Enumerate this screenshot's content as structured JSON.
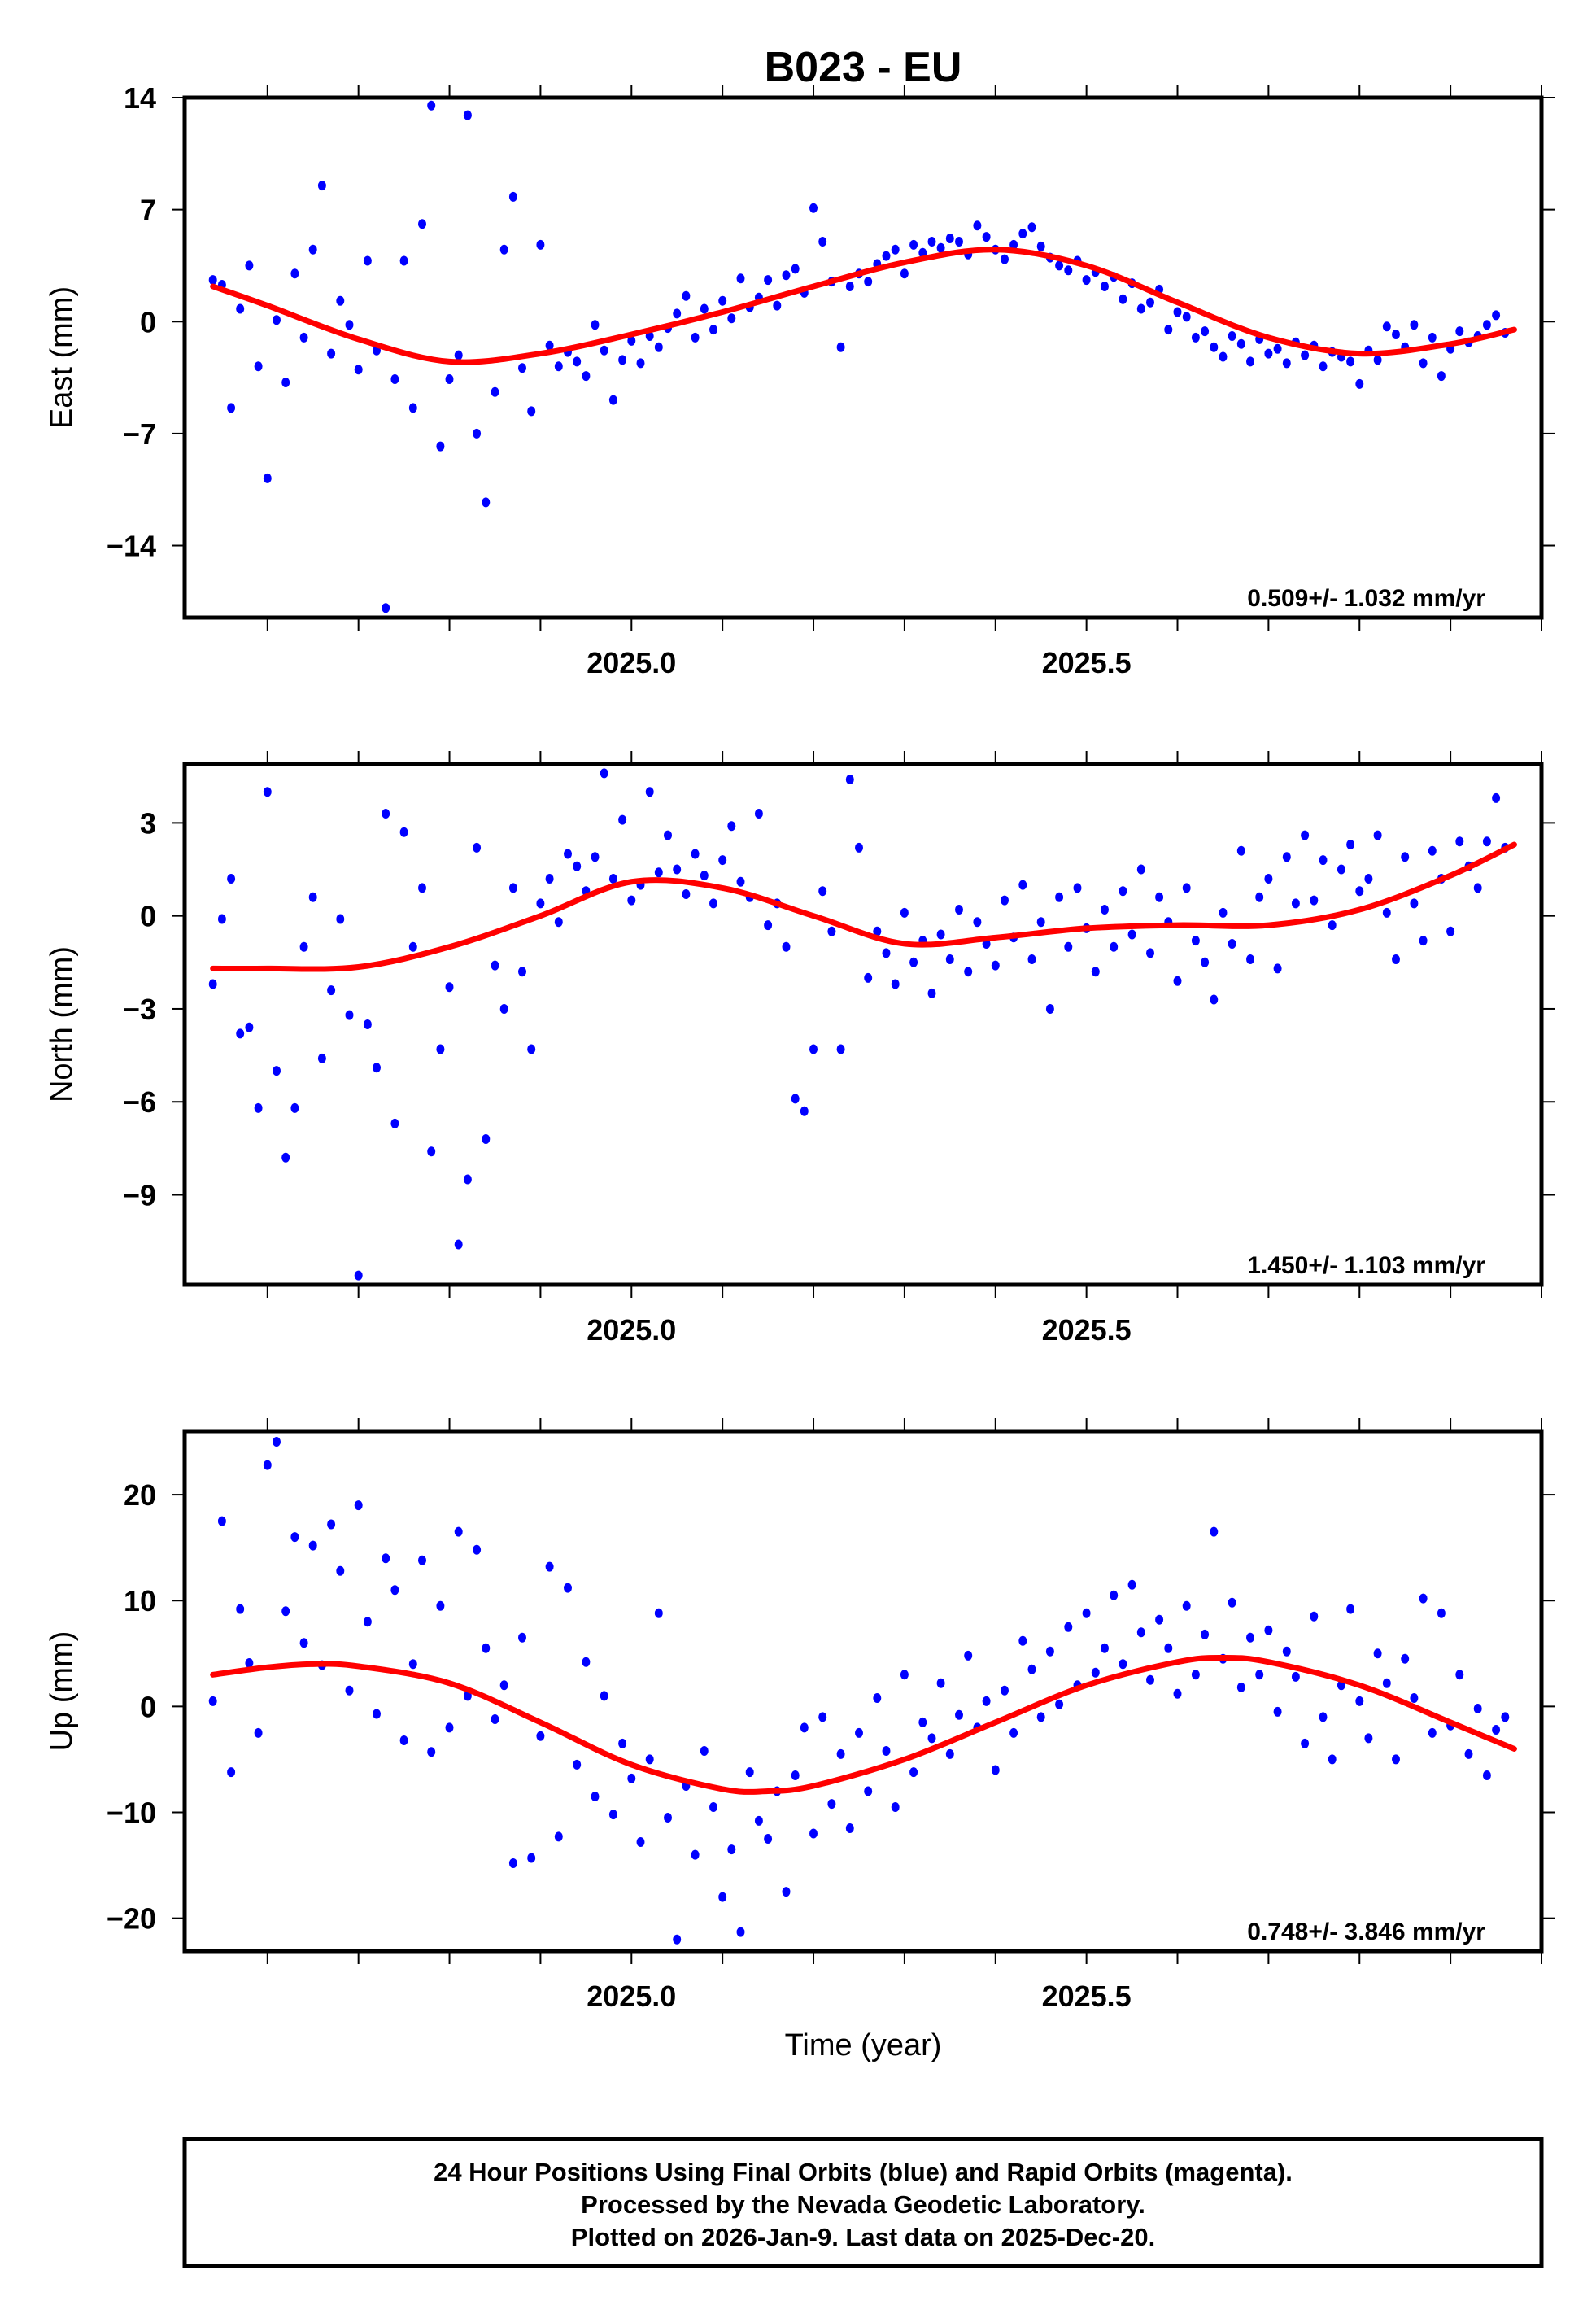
{
  "title": "B023 - EU",
  "footer": {
    "lines": [
      "24 Hour Positions Using Final Orbits (blue) and Rapid Orbits (magenta).",
      "Processed by the Nevada Geodetic Laboratory.",
      "Plotted on 2026-Jan-9. Last data on 2025-Dec-20."
    ]
  },
  "colors": {
    "final_orbits": "#0000ff",
    "fit": "#ff0000",
    "frame": "#000000"
  },
  "chart_data": [
    {
      "type": "scatter",
      "name": "east",
      "ylabel": "East (mm)",
      "xlabel": "",
      "xlim": [
        2024.509,
        2026.0
      ],
      "ylim": [
        -18.5,
        14
      ],
      "yticks": [
        14,
        7,
        0,
        -7,
        -14
      ],
      "ytick_labels": [
        "14",
        "7",
        "0",
        "−7",
        "−14"
      ],
      "xticks": [
        2025.0,
        2025.5
      ],
      "xtick_labels": [
        "2025.0",
        "2025.5"
      ],
      "rate_label": "0.509+/- 1.032 mm/yr",
      "x_start": 2024.54,
      "x_step": 0.01,
      "values": [
        2.6,
        2.3,
        -5.4,
        0.8,
        3.5,
        -2.8,
        -9.8,
        0.1,
        -3.8,
        3.0,
        -1.0,
        4.5,
        8.5,
        -2.0,
        1.3,
        -0.2,
        -3.0,
        3.8,
        -1.8,
        -17.9,
        -3.6,
        3.8,
        -5.4,
        6.1,
        13.5,
        -7.8,
        -3.6,
        -2.1,
        12.9,
        -7.0,
        -11.3,
        -4.4,
        4.5,
        7.8,
        -2.9,
        -5.6,
        4.8,
        -1.5,
        -2.8,
        -1.9,
        -2.5,
        -3.4,
        -0.2,
        -1.8,
        -4.9,
        -2.4,
        -1.2,
        -2.6,
        -0.9,
        -1.6,
        -0.4,
        0.5,
        1.6,
        -1.0,
        0.8,
        -0.5,
        1.3,
        0.2,
        2.7,
        0.9,
        1.5,
        2.6,
        1.0,
        2.9,
        3.3,
        1.8,
        7.1,
        5.0,
        2.5,
        -1.6,
        2.2,
        3.0,
        2.5,
        3.6,
        4.1,
        4.5,
        3.0,
        4.8,
        4.3,
        5.0,
        4.6,
        5.2,
        5.0,
        4.2,
        6.0,
        5.3,
        4.5,
        3.9,
        4.8,
        5.5,
        5.9,
        4.7,
        4.0,
        3.5,
        3.2,
        3.8,
        2.6,
        3.1,
        2.2,
        2.8,
        1.4,
        2.4,
        0.8,
        1.2,
        2.0,
        -0.5,
        0.6,
        0.3,
        -1.0,
        -0.6,
        -1.6,
        -2.2,
        -0.9,
        -1.4,
        -2.5,
        -1.1,
        -2.0,
        -1.7,
        -2.6,
        -1.3,
        -2.1,
        -1.5,
        -2.8,
        -1.9,
        -2.2,
        -2.5,
        -3.9,
        -1.8,
        -2.4,
        -0.3,
        -0.8,
        -1.6,
        -0.2,
        -2.6,
        -1.0,
        -3.4,
        -1.7,
        -0.6,
        -1.3,
        -0.9,
        -0.2,
        0.4,
        -0.7
      ],
      "fit": [
        [
          2024.54,
          2.2
        ],
        [
          2024.6,
          1.0
        ],
        [
          2024.7,
          -1.1
        ],
        [
          2024.8,
          -2.5
        ],
        [
          2024.9,
          -2.0
        ],
        [
          2025.0,
          -0.8
        ],
        [
          2025.1,
          0.6
        ],
        [
          2025.2,
          2.2
        ],
        [
          2025.3,
          3.7
        ],
        [
          2025.4,
          4.5
        ],
        [
          2025.5,
          3.5
        ],
        [
          2025.6,
          1.2
        ],
        [
          2025.7,
          -1.0
        ],
        [
          2025.8,
          -2.0
        ],
        [
          2025.9,
          -1.4
        ],
        [
          2025.97,
          -0.5
        ]
      ]
    },
    {
      "type": "scatter",
      "name": "north",
      "ylabel": "North (mm)",
      "xlabel": "",
      "xlim": [
        2024.509,
        2026.0
      ],
      "ylim": [
        -11.9,
        4.9
      ],
      "yticks": [
        3,
        0,
        -3,
        -6,
        -9
      ],
      "ytick_labels": [
        "3",
        "0",
        "−3",
        "−6",
        "−9"
      ],
      "xticks": [
        2025.0,
        2025.5
      ],
      "xtick_labels": [
        "2025.0",
        "2025.5"
      ],
      "rate_label": "1.450+/- 1.103 mm/yr",
      "x_start": 2024.54,
      "x_step": 0.01,
      "values": [
        -2.2,
        -0.1,
        1.2,
        -3.8,
        -3.6,
        -6.2,
        4.0,
        -5.0,
        -7.8,
        -6.2,
        -1.0,
        0.6,
        -4.6,
        -2.4,
        -0.1,
        -3.2,
        -11.6,
        -3.5,
        -4.9,
        3.3,
        -6.7,
        2.7,
        -1.0,
        0.9,
        -7.6,
        -4.3,
        -2.3,
        -10.6,
        -8.5,
        2.2,
        -7.2,
        -1.6,
        -3.0,
        0.9,
        -1.8,
        -4.3,
        0.4,
        1.2,
        -0.2,
        2.0,
        1.6,
        0.8,
        1.9,
        4.6,
        1.2,
        3.1,
        0.5,
        1.0,
        4.0,
        1.4,
        2.6,
        1.5,
        0.7,
        2.0,
        1.3,
        0.4,
        1.8,
        2.9,
        1.1,
        0.6,
        3.3,
        -0.3,
        0.4,
        -1.0,
        -5.9,
        -6.3,
        -4.3,
        0.8,
        -0.5,
        -4.3,
        4.4,
        2.2,
        -2.0,
        -0.5,
        -1.2,
        -2.2,
        0.1,
        -1.5,
        -0.8,
        -2.5,
        -0.6,
        -1.4,
        0.2,
        -1.8,
        -0.2,
        -0.9,
        -1.6,
        0.5,
        -0.7,
        1.0,
        -1.4,
        -0.2,
        -3.0,
        0.6,
        -1.0,
        0.9,
        -0.4,
        -1.8,
        0.2,
        -1.0,
        0.8,
        -0.6,
        1.5,
        -1.2,
        0.6,
        -0.2,
        -2.1,
        0.9,
        -0.8,
        -1.5,
        -2.7,
        0.1,
        -0.9,
        2.1,
        -1.4,
        0.6,
        1.2,
        -1.7,
        1.9,
        0.4,
        2.6,
        0.5,
        1.8,
        -0.3,
        1.5,
        2.3,
        0.8,
        1.2,
        2.6,
        0.1,
        -1.4,
        1.9,
        0.4,
        -0.8,
        2.1,
        1.2,
        -0.5,
        2.4,
        1.6,
        0.9,
        2.4,
        3.8,
        2.2
      ],
      "fit": [
        [
          2024.54,
          -1.7
        ],
        [
          2024.6,
          -1.7
        ],
        [
          2024.7,
          -1.65
        ],
        [
          2024.8,
          -1.0
        ],
        [
          2024.9,
          0.0
        ],
        [
          2025.0,
          1.1
        ],
        [
          2025.1,
          0.9
        ],
        [
          2025.2,
          0.0
        ],
        [
          2025.3,
          -0.9
        ],
        [
          2025.4,
          -0.7
        ],
        [
          2025.5,
          -0.4
        ],
        [
          2025.6,
          -0.3
        ],
        [
          2025.7,
          -0.3
        ],
        [
          2025.8,
          0.2
        ],
        [
          2025.9,
          1.3
        ],
        [
          2025.97,
          2.3
        ]
      ]
    },
    {
      "type": "scatter",
      "name": "up",
      "ylabel": "Up (mm)",
      "xlabel": "Time (year)",
      "xlim": [
        2024.509,
        2026.0
      ],
      "ylim": [
        -23.1,
        26
      ],
      "yticks": [
        20,
        10,
        0,
        -10,
        -20
      ],
      "ytick_labels": [
        "20",
        "10",
        "0",
        "−10",
        "−20"
      ],
      "xticks": [
        2025.0,
        2025.5
      ],
      "xtick_labels": [
        "2025.0",
        "2025.5"
      ],
      "rate_label": "0.748+/- 3.846 mm/yr",
      "x_start": 2024.54,
      "x_step": 0.01,
      "values": [
        0.5,
        17.5,
        -6.2,
        9.2,
        4.1,
        -2.5,
        22.8,
        25.0,
        9.0,
        16.0,
        6.0,
        15.2,
        3.9,
        17.2,
        12.8,
        1.5,
        19.0,
        8.0,
        -0.7,
        14.0,
        11.0,
        -3.2,
        4.0,
        13.8,
        -4.3,
        9.5,
        -2.0,
        16.5,
        1.0,
        14.8,
        5.5,
        -1.2,
        2.0,
        -14.8,
        6.5,
        -14.3,
        -2.8,
        13.2,
        -12.3,
        11.2,
        -5.5,
        4.2,
        -8.5,
        1.0,
        -10.2,
        -3.5,
        -6.8,
        -12.8,
        -5.0,
        8.8,
        -10.5,
        -22.0,
        -7.5,
        -14.0,
        -4.2,
        -9.5,
        -18.0,
        -13.5,
        -21.3,
        -6.2,
        -10.8,
        -12.5,
        -8.0,
        -17.5,
        -6.5,
        -2.0,
        -12.0,
        -1.0,
        -9.2,
        -4.5,
        -11.5,
        -2.5,
        -8.0,
        0.8,
        -4.2,
        -9.5,
        3.0,
        -6.2,
        -1.5,
        -3.0,
        2.2,
        -4.5,
        -0.8,
        4.8,
        -2.0,
        0.5,
        -6.0,
        1.5,
        -2.5,
        6.2,
        3.5,
        -1.0,
        5.2,
        0.2,
        7.5,
        2.0,
        8.8,
        3.2,
        5.5,
        10.5,
        4.0,
        11.5,
        7.0,
        2.5,
        8.2,
        5.5,
        1.2,
        9.5,
        3.0,
        6.8,
        16.5,
        4.5,
        9.8,
        1.8,
        6.5,
        3.0,
        7.2,
        -0.5,
        5.2,
        2.8,
        -3.5,
        8.5,
        -1.0,
        -5.0,
        2.0,
        9.2,
        0.5,
        -3.0,
        5.0,
        2.2,
        -5.0,
        4.5,
        0.8,
        10.2,
        -2.5,
        8.8,
        -1.8,
        3.0,
        -4.5,
        -0.2,
        -6.5,
        -2.2,
        -1.0
      ],
      "fit": [
        [
          2024.54,
          3.0
        ],
        [
          2024.6,
          3.7
        ],
        [
          2024.65,
          4.0
        ],
        [
          2024.7,
          3.8
        ],
        [
          2024.8,
          2.2
        ],
        [
          2024.9,
          -1.5
        ],
        [
          2025.0,
          -5.5
        ],
        [
          2025.1,
          -7.8
        ],
        [
          2025.15,
          -8.0
        ],
        [
          2025.2,
          -7.5
        ],
        [
          2025.3,
          -5.0
        ],
        [
          2025.4,
          -1.5
        ],
        [
          2025.5,
          2.0
        ],
        [
          2025.6,
          4.2
        ],
        [
          2025.65,
          4.6
        ],
        [
          2025.7,
          4.2
        ],
        [
          2025.8,
          2.0
        ],
        [
          2025.9,
          -1.5
        ],
        [
          2025.97,
          -4.0
        ]
      ]
    }
  ]
}
